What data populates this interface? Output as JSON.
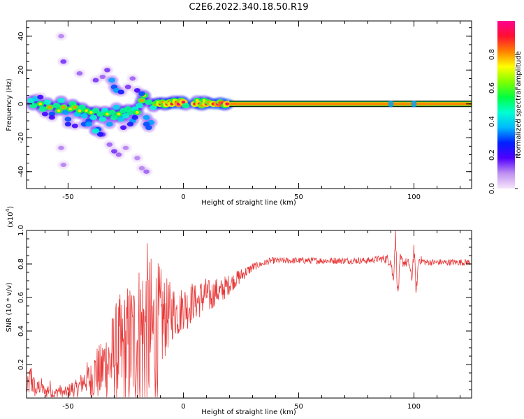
{
  "figure_title": "C2E6.2022.340.18.50.R19",
  "colorbar": {
    "label": "Normalized spectral amplitude",
    "ticks": [
      "0.0",
      "0.2",
      "0.4",
      "0.6",
      "0.8"
    ],
    "range": [
      0,
      1
    ],
    "colors": [
      "#f6e6fb",
      "#c090f0",
      "#5000ff",
      "#0020ff",
      "#00b8ff",
      "#00ffd0",
      "#00ff40",
      "#80ff00",
      "#ffff00",
      "#ff8000",
      "#ff1030",
      "#ff0090"
    ]
  },
  "chart_data": [
    {
      "type": "heatmap",
      "title": "",
      "xlabel": "Height of straight line (km)",
      "ylabel": "Frequency (Hz)",
      "xlim": [
        -68,
        125
      ],
      "ylim": [
        -50,
        49
      ],
      "xticks": [
        "-50",
        "0",
        "50",
        "100"
      ],
      "xtick_values": [
        -50,
        0,
        50,
        100
      ],
      "yticks": [
        "40",
        "20",
        "0",
        "-20",
        "-40"
      ],
      "ytick_values": [
        40,
        20,
        0,
        -20,
        -40
      ],
      "grid": false,
      "series": [
        {
          "points": [
            [
              -66,
              2,
              0.45
            ],
            [
              -65,
              -1,
              0.5
            ],
            [
              -64,
              3,
              0.4
            ],
            [
              -62,
              0,
              0.55
            ],
            [
              -61,
              -3,
              0.5
            ],
            [
              -59,
              1,
              0.45
            ],
            [
              -58,
              -2,
              0.6
            ],
            [
              -57,
              -6,
              0.3
            ],
            [
              -55,
              -1,
              0.5
            ],
            [
              -54,
              -4,
              0.55
            ],
            [
              -53,
              2,
              0.45
            ],
            [
              -52,
              -2,
              0.6
            ],
            [
              -51,
              -5,
              0.35
            ],
            [
              -50,
              -9,
              0.3
            ],
            [
              -49,
              -3,
              0.55
            ],
            [
              -48,
              0,
              0.5
            ],
            [
              -47,
              -2,
              0.6
            ],
            [
              -46,
              -6,
              0.4
            ],
            [
              -45,
              -4,
              0.55
            ],
            [
              -44,
              -2,
              0.5
            ],
            [
              -43,
              -7,
              0.4
            ],
            [
              -42,
              -4,
              0.55
            ],
            [
              -41,
              -10,
              0.3
            ],
            [
              -40,
              -5,
              0.55
            ],
            [
              -39,
              -8,
              0.45
            ],
            [
              -38,
              -4,
              0.5
            ],
            [
              -37,
              -15,
              0.3
            ],
            [
              -36,
              -6,
              0.5
            ],
            [
              -35,
              -9,
              0.45
            ],
            [
              -34,
              -4,
              0.45
            ],
            [
              -33,
              -6,
              0.55
            ],
            [
              -32,
              -12,
              0.35
            ],
            [
              -31,
              -5,
              0.5
            ],
            [
              -30,
              -8,
              0.5
            ],
            [
              -29,
              -2,
              0.4
            ],
            [
              -28,
              -6,
              0.55
            ],
            [
              -27,
              -9,
              0.4
            ],
            [
              -26,
              -4,
              0.5
            ],
            [
              -25,
              -7,
              0.45
            ],
            [
              -24,
              -3,
              0.5
            ],
            [
              -23,
              -5,
              0.5
            ],
            [
              -22,
              -10,
              0.35
            ],
            [
              -21,
              -3,
              0.45
            ],
            [
              -20,
              -5,
              0.55
            ],
            [
              -19,
              -1,
              0.45
            ],
            [
              -18,
              2,
              0.6
            ],
            [
              -17,
              5,
              0.55
            ],
            [
              -16,
              -8,
              0.35
            ],
            [
              -15,
              1,
              0.5
            ],
            [
              -14,
              -11,
              0.35
            ],
            [
              -13,
              -2,
              0.45
            ],
            [
              -12,
              0,
              0.6
            ],
            [
              -11,
              1,
              0.55
            ],
            [
              -10,
              0,
              0.7
            ],
            [
              -9,
              1,
              0.6
            ],
            [
              -8,
              -1,
              0.55
            ],
            [
              -7,
              0,
              0.75
            ],
            [
              -6,
              1,
              0.65
            ],
            [
              -5,
              0,
              0.7
            ],
            [
              -4,
              2,
              0.55
            ],
            [
              -3,
              1,
              0.7
            ],
            [
              -2,
              0,
              0.8
            ],
            [
              -1,
              2,
              0.6
            ],
            [
              0,
              1,
              0.75
            ],
            [
              1,
              -1,
              0.5
            ],
            [
              5,
              0,
              0.7
            ],
            [
              6,
              2,
              0.55
            ],
            [
              7,
              0,
              0.75
            ],
            [
              8,
              -1,
              0.6
            ],
            [
              9,
              2,
              0.55
            ],
            [
              10,
              0,
              0.75
            ],
            [
              11,
              1,
              0.6
            ],
            [
              13,
              0,
              0.7
            ],
            [
              15,
              0,
              0.8
            ],
            [
              16,
              1,
              0.6
            ],
            [
              17,
              0,
              0.85
            ],
            [
              18,
              -1,
              0.55
            ],
            [
              19,
              0,
              0.75
            ],
            [
              -52,
              25,
              0.15
            ],
            [
              -45,
              18,
              0.12
            ],
            [
              -38,
              14,
              0.15
            ],
            [
              -35,
              16,
              0.12
            ],
            [
              -33,
              20,
              0.15
            ],
            [
              -31,
              14,
              0.35
            ],
            [
              -30,
              10,
              0.3
            ],
            [
              -29,
              8,
              0.35
            ],
            [
              -27,
              7,
              0.25
            ],
            [
              -24,
              10,
              0.15
            ],
            [
              -22,
              15,
              0.12
            ],
            [
              -20,
              8,
              0.2
            ],
            [
              -18,
              6,
              0.3
            ],
            [
              -35,
              -18,
              0.15
            ],
            [
              -32,
              -24,
              0.12
            ],
            [
              -30,
              -28,
              0.15
            ],
            [
              -28,
              -30,
              0.12
            ],
            [
              -25,
              -26,
              0.1
            ],
            [
              -20,
              -32,
              0.1
            ],
            [
              -18,
              -38,
              0.1
            ],
            [
              -16,
              -40,
              0.12
            ],
            [
              -53,
              -26,
              0.1
            ],
            [
              -52,
              -36,
              0.1
            ],
            [
              -53,
              40,
              0.1
            ],
            [
              -57,
              -8,
              0.2
            ],
            [
              -60,
              -6,
              0.2
            ],
            [
              -62,
              4,
              0.2
            ],
            [
              -50,
              -12,
              0.25
            ],
            [
              -47,
              -13,
              0.2
            ],
            [
              -43,
              -12,
              0.3
            ],
            [
              -41,
              -12,
              0.35
            ],
            [
              -38,
              -16,
              0.45
            ],
            [
              -36,
              -18,
              0.25
            ],
            [
              -26,
              -14,
              0.2
            ],
            [
              -23,
              -12,
              0.25
            ],
            [
              -21,
              -8,
              0.25
            ],
            [
              -16,
              -12,
              0.3
            ],
            [
              -15,
              -14,
              0.3
            ]
          ]
        },
        {
          "name": "",
          "band": [
            20,
            125,
            0.82
          ]
        },
        {
          "name": "",
          "spots": [
            [
              90,
              0,
              0.35
            ],
            [
              100,
              0,
              0.35
            ]
          ]
        }
      ]
    },
    {
      "type": "line",
      "title": "",
      "xlabel": "Height of straight line (km)",
      "ylabel": "SNR (10 * v/v)",
      "yunit": "(x10",
      "yunit_exp": "4",
      "yunit_close": ")",
      "xlim": [
        -68,
        125
      ],
      "ylim": [
        0,
        1
      ],
      "xticks": [
        "-50",
        "0",
        "50",
        "100"
      ],
      "xtick_values": [
        -50,
        0,
        50,
        100
      ],
      "yticks": [
        "0.2",
        "0.4",
        "0.6",
        "0.8",
        "1.0"
      ],
      "ytick_values": [
        0.2,
        0.4,
        0.6,
        0.8,
        1.0
      ],
      "grid": false,
      "color": "#e83a3a",
      "series": [
        {
          "name": "",
          "x": [
            -68,
            -66,
            -64,
            -62,
            -60,
            -58,
            -56,
            -54,
            -52,
            -50,
            -48,
            -46,
            -44,
            -42,
            -40,
            -38,
            -36,
            -34,
            -32,
            -30,
            -28,
            -26,
            -24,
            -22,
            -20,
            -18,
            -16,
            -14,
            -12,
            -10,
            -8,
            -6,
            -4,
            -2,
            0,
            2,
            4,
            6,
            8,
            10,
            12,
            14,
            16,
            18,
            20,
            22,
            24,
            26,
            28,
            30,
            32,
            34,
            36,
            38,
            40,
            45,
            50,
            55,
            60,
            65,
            70,
            75,
            80,
            85,
            88,
            90,
            91,
            92,
            93,
            94,
            96,
            98,
            99,
            100,
            101,
            102,
            105,
            110,
            115,
            120,
            125
          ],
          "y": [
            0.05,
            0.12,
            0.04,
            0.08,
            0.03,
            0.06,
            0.02,
            0.05,
            0.03,
            0.04,
            0.06,
            0.05,
            0.09,
            0.12,
            0.1,
            0.16,
            0.14,
            0.22,
            0.2,
            0.25,
            0.28,
            0.26,
            0.3,
            0.32,
            0.35,
            0.38,
            0.4,
            0.36,
            0.4,
            0.44,
            0.48,
            0.5,
            0.52,
            0.5,
            0.55,
            0.54,
            0.58,
            0.57,
            0.6,
            0.62,
            0.6,
            0.64,
            0.63,
            0.66,
            0.68,
            0.7,
            0.72,
            0.74,
            0.76,
            0.78,
            0.79,
            0.8,
            0.81,
            0.82,
            0.82,
            0.82,
            0.82,
            0.82,
            0.82,
            0.82,
            0.82,
            0.82,
            0.82,
            0.83,
            0.83,
            0.82,
            0.7,
            0.98,
            0.6,
            0.82,
            0.81,
            0.8,
            0.7,
            0.9,
            0.62,
            0.83,
            0.81,
            0.81,
            0.81,
            0.81,
            0.81
          ],
          "noise_amp": [
            0.04,
            0.12,
            0.04,
            0.06,
            0.03,
            0.06,
            0.03,
            0.04,
            0.03,
            0.04,
            0.05,
            0.06,
            0.07,
            0.1,
            0.12,
            0.16,
            0.18,
            0.2,
            0.26,
            0.3,
            0.34,
            0.38,
            0.4,
            0.42,
            0.46,
            0.5,
            0.55,
            0.5,
            0.45,
            0.35,
            0.25,
            0.2,
            0.16,
            0.14,
            0.14,
            0.13,
            0.12,
            0.1,
            0.12,
            0.1,
            0.1,
            0.08,
            0.08,
            0.07,
            0.06,
            0.05,
            0.05,
            0.04,
            0.03,
            0.03,
            0.02,
            0.02,
            0.02,
            0.02,
            0.02,
            0.02,
            0.02,
            0.02,
            0.02,
            0.02,
            0.02,
            0.02,
            0.02,
            0.02,
            0.03,
            0.04,
            0.05,
            0.05,
            0.05,
            0.04,
            0.03,
            0.03,
            0.04,
            0.05,
            0.04,
            0.03,
            0.02,
            0.02,
            0.02,
            0.02,
            0.02
          ]
        }
      ]
    }
  ]
}
